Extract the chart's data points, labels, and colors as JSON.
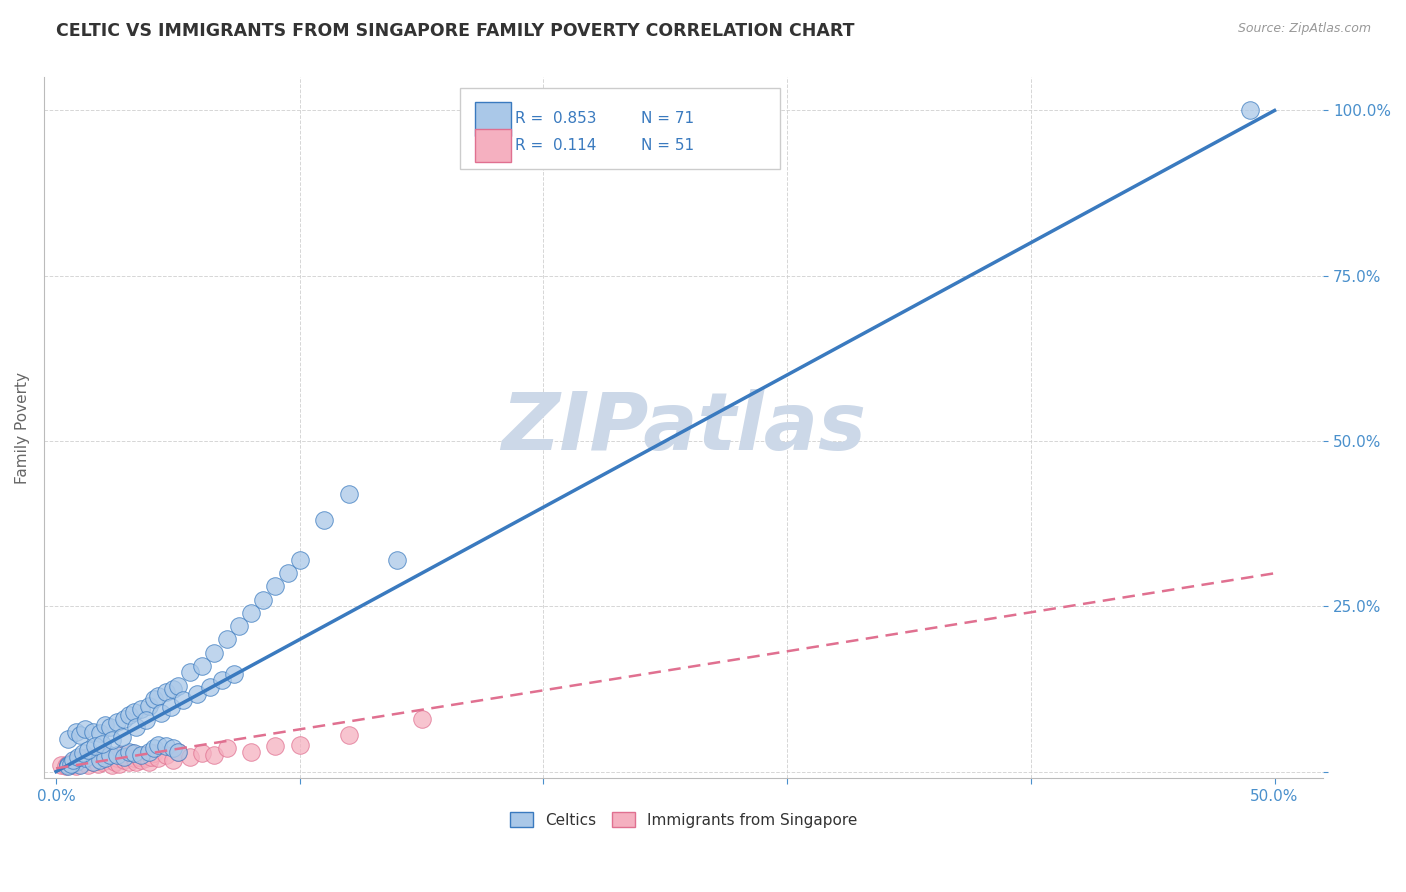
{
  "title": "CELTIC VS IMMIGRANTS FROM SINGAPORE FAMILY POVERTY CORRELATION CHART",
  "source": "Source: ZipAtlas.com",
  "ylabel": "Family Poverty",
  "xlim": [
    -0.005,
    0.52
  ],
  "ylim": [
    -0.01,
    1.05
  ],
  "xticks": [
    0.0,
    0.1,
    0.2,
    0.3,
    0.4,
    0.5
  ],
  "xtick_labels": [
    "0.0%",
    "",
    "",
    "",
    "",
    "50.0%"
  ],
  "ytick_labels": [
    "",
    "25.0%",
    "50.0%",
    "75.0%",
    "100.0%"
  ],
  "yticks": [
    0.0,
    0.25,
    0.5,
    0.75,
    1.0
  ],
  "celtics_R": 0.853,
  "celtics_N": 71,
  "singapore_R": 0.114,
  "singapore_N": 51,
  "celtics_color": "#aac8e8",
  "singapore_color": "#f5b0c0",
  "celtics_line_color": "#3a7abf",
  "singapore_line_color": "#e07090",
  "background_color": "#ffffff",
  "grid_color": "#cccccc",
  "watermark_color": "#ccd8e8",
  "title_color": "#333333",
  "axis_label_color": "#666666",
  "tick_color": "#4a90cc",
  "legend_R_color": "#3a7abf",
  "celtics_x": [
    0.005,
    0.008,
    0.01,
    0.012,
    0.015,
    0.018,
    0.02,
    0.022,
    0.025,
    0.028,
    0.03,
    0.032,
    0.035,
    0.038,
    0.04,
    0.042,
    0.045,
    0.048,
    0.05,
    0.005,
    0.008,
    0.01,
    0.012,
    0.015,
    0.018,
    0.02,
    0.022,
    0.025,
    0.028,
    0.03,
    0.032,
    0.035,
    0.038,
    0.04,
    0.042,
    0.045,
    0.048,
    0.05,
    0.055,
    0.06,
    0.065,
    0.07,
    0.075,
    0.08,
    0.085,
    0.09,
    0.095,
    0.1,
    0.11,
    0.12,
    0.005,
    0.006,
    0.007,
    0.009,
    0.011,
    0.013,
    0.016,
    0.019,
    0.023,
    0.027,
    0.033,
    0.037,
    0.043,
    0.047,
    0.052,
    0.058,
    0.063,
    0.068,
    0.073,
    0.14,
    0.49
  ],
  "celtics_y": [
    0.01,
    0.015,
    0.01,
    0.02,
    0.015,
    0.018,
    0.02,
    0.025,
    0.025,
    0.022,
    0.03,
    0.028,
    0.025,
    0.03,
    0.035,
    0.04,
    0.038,
    0.035,
    0.03,
    0.05,
    0.06,
    0.055,
    0.065,
    0.06,
    0.058,
    0.07,
    0.068,
    0.075,
    0.08,
    0.085,
    0.09,
    0.095,
    0.1,
    0.11,
    0.115,
    0.12,
    0.125,
    0.13,
    0.15,
    0.16,
    0.18,
    0.2,
    0.22,
    0.24,
    0.26,
    0.28,
    0.3,
    0.32,
    0.38,
    0.42,
    0.008,
    0.012,
    0.018,
    0.022,
    0.028,
    0.032,
    0.038,
    0.042,
    0.048,
    0.052,
    0.068,
    0.078,
    0.088,
    0.098,
    0.108,
    0.118,
    0.128,
    0.138,
    0.148,
    0.32,
    1.0
  ],
  "singapore_x": [
    0.002,
    0.004,
    0.005,
    0.006,
    0.007,
    0.008,
    0.009,
    0.01,
    0.011,
    0.012,
    0.013,
    0.014,
    0.015,
    0.016,
    0.017,
    0.018,
    0.019,
    0.02,
    0.021,
    0.022,
    0.023,
    0.024,
    0.025,
    0.026,
    0.027,
    0.028,
    0.029,
    0.03,
    0.031,
    0.032,
    0.033,
    0.034,
    0.035,
    0.036,
    0.037,
    0.038,
    0.039,
    0.04,
    0.042,
    0.045,
    0.048,
    0.05,
    0.055,
    0.06,
    0.065,
    0.07,
    0.08,
    0.09,
    0.1,
    0.12,
    0.15
  ],
  "singapore_y": [
    0.01,
    0.008,
    0.012,
    0.01,
    0.015,
    0.008,
    0.018,
    0.012,
    0.02,
    0.015,
    0.01,
    0.022,
    0.015,
    0.018,
    0.012,
    0.02,
    0.015,
    0.025,
    0.018,
    0.022,
    0.01,
    0.015,
    0.02,
    0.012,
    0.025,
    0.018,
    0.022,
    0.015,
    0.028,
    0.02,
    0.015,
    0.022,
    0.018,
    0.025,
    0.02,
    0.015,
    0.022,
    0.028,
    0.02,
    0.025,
    0.018,
    0.03,
    0.022,
    0.028,
    0.025,
    0.035,
    0.03,
    0.038,
    0.04,
    0.055,
    0.08
  ],
  "celtics_line_x0": 0.0,
  "celtics_line_y0": 0.0,
  "celtics_line_x1": 0.5,
  "celtics_line_y1": 1.0,
  "singapore_line_x0": 0.0,
  "singapore_line_y0": 0.005,
  "singapore_line_x1": 0.5,
  "singapore_line_y1": 0.3
}
